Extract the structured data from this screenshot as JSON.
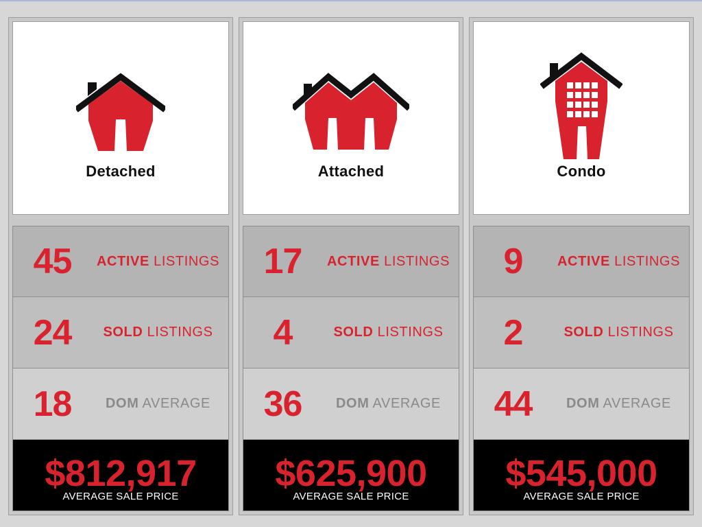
{
  "columns": [
    {
      "type_label": "Detached",
      "icon": "detached-house-icon",
      "active_count": "45",
      "active_label_strong": "ACTIVE",
      "active_label_rest": "LISTINGS",
      "sold_count": "24",
      "sold_label_strong": "SOLD",
      "sold_label_rest": "LISTINGS",
      "dom_value": "18",
      "dom_label_strong": "DOM",
      "dom_label_rest": "AVERAGE",
      "price": "$812,917",
      "price_caption": "AVERAGE SALE PRICE"
    },
    {
      "type_label": "Attached",
      "icon": "attached-house-icon",
      "active_count": "17",
      "active_label_strong": "ACTIVE",
      "active_label_rest": "LISTINGS",
      "sold_count": "4",
      "sold_label_strong": "SOLD",
      "sold_label_rest": "LISTINGS",
      "dom_value": "36",
      "dom_label_strong": "DOM",
      "dom_label_rest": "AVERAGE",
      "price": "$625,900",
      "price_caption": "AVERAGE SALE PRICE"
    },
    {
      "type_label": "Condo",
      "icon": "condo-building-icon",
      "active_count": "9",
      "active_label_strong": "ACTIVE",
      "active_label_rest": "LISTINGS",
      "sold_count": "2",
      "sold_label_strong": "SOLD",
      "sold_label_rest": "LISTINGS",
      "dom_value": "44",
      "dom_label_strong": "DOM",
      "dom_label_rest": "AVERAGE",
      "price": "$545,000",
      "price_caption": "AVERAGE SALE PRICE"
    }
  ],
  "colors": {
    "accent_red": "#d8232f",
    "dom_grey": "#8a8a8a",
    "price_bg": "#000000"
  }
}
